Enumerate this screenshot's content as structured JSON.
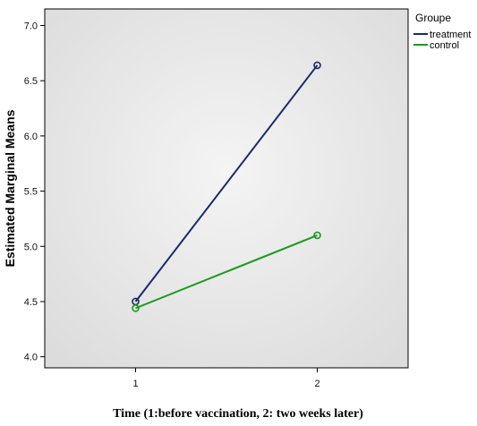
{
  "chart_data": {
    "type": "line",
    "title": "",
    "xlabel": "Time (1:before vaccination, 2: two weeks later)",
    "ylabel": "Estimated Marginal Means",
    "x": [
      1,
      2
    ],
    "x_tick_labels": [
      "1",
      "2"
    ],
    "xlim": [
      0.5,
      2.5
    ],
    "ylim": [
      3.9,
      7.15
    ],
    "y_ticks": [
      4.0,
      4.5,
      5.0,
      5.5,
      6.0,
      6.5,
      7.0
    ],
    "y_tick_labels": [
      "4.0",
      "4.5",
      "5.0",
      "5.5",
      "6.0",
      "6.5",
      "7.0"
    ],
    "grid": false,
    "legend": {
      "title": "Groupe",
      "placement": "right"
    },
    "series": [
      {
        "name": "treatment",
        "color": "#1b2a6b",
        "values": [
          4.5,
          6.64
        ]
      },
      {
        "name": "control",
        "color": "#1a9a1a",
        "values": [
          4.44,
          5.1
        ]
      }
    ]
  }
}
